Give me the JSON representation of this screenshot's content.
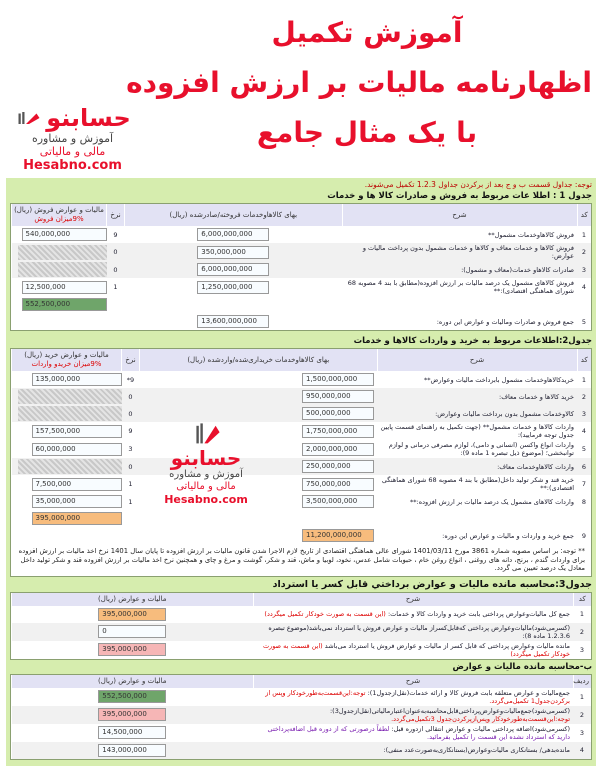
{
  "header": {
    "title_lines": [
      "آموزش تکمیل",
      "اظهارنامه مالیات بر ارزش افزوده",
      "با یک مثال جامع"
    ]
  },
  "logo": {
    "mark": "حسابنو",
    "line1": "آموزش و مشاوره",
    "line2": "مالی و مالیاتی",
    "site": "Hesabno.com"
  },
  "note_top": "توجه: جداول قسمت ب و ج بعد از برکردن جداول 1.2.3 تکمیل می‌شوند.",
  "table1": {
    "title": "جدول 1 : اطلا عات مربوط به فروش و صادرات کالا ها و خدمات",
    "headers": [
      "کد",
      "شرح",
      "بهای کالاهاوخدمات فروخته/صادرشده (ریال)",
      "نرخ",
      "مالیات و عوارض فروش (ریال)"
    ],
    "header_note": "9%میزان فروش",
    "rows": [
      {
        "code": "1",
        "desc": "فروش کالاهاوخدمات مشمول**",
        "amount": "6,000,000,000",
        "rate": "9",
        "tax": "540,000,000",
        "tax_style": "input"
      },
      {
        "code": "2",
        "desc": "فروش کالاها و خدمات معاف و کالاها و خدمات مشمول بدون پرداخت مالیات و عوارض:",
        "amount": "350,000,000",
        "rate": "0",
        "tax": "",
        "tax_style": "hatch"
      },
      {
        "code": "3",
        "desc": "صادرات کالاهاو خدمات(معاف و مشمول):",
        "amount": "6,000,000,000",
        "rate": "0",
        "tax": "",
        "tax_style": "hatch"
      },
      {
        "code": "4",
        "desc": "فروش کالاهای مشمول یک درصد مالیات بر ارزش افزوده(مطابق با بند 4 مصوبه 68 شورای هماهنگی اقتصادی):**",
        "amount": "1,250,000,000",
        "rate": "1",
        "tax": "12,500,000",
        "tax_style": "input"
      },
      {
        "code": "",
        "desc": "",
        "amount": "",
        "rate": "",
        "tax": "552,500,000",
        "tax_style": "green"
      },
      {
        "code": "5",
        "desc": "جمع فروش و صادرات ومالیات و عوارض این دوره:",
        "amount": "13,600,000,000",
        "rate": "",
        "tax": "",
        "tax_style": "none"
      }
    ]
  },
  "table2": {
    "title": "جدول2:اطلاعات مربوط به خرید و واردات کالاها و خدمات",
    "headers": [
      "کد",
      "شرح",
      "بهای کالاهاوخدمات خریداری‌شده/وارد‌شده (ریال)",
      "نرخ",
      "مالیات و عوارض خرید (ریال)"
    ],
    "header_note": "9%میزان خریدو واردات",
    "rows": [
      {
        "code": "1",
        "desc": "خریدکالاهاوخدمات مشمول بابرداخت مالیات وعوارض**",
        "amount": "1,500,000,000",
        "rate": "9*",
        "tax": "135,000,000",
        "tax_style": "input"
      },
      {
        "code": "2",
        "desc": "خرید کالاها و خدمات معاف:",
        "amount": "950,000,000",
        "rate": "0",
        "tax": "",
        "tax_style": "hatch"
      },
      {
        "code": "3",
        "desc": "کالاوخدمات مشمول بدون برداخت مالیات وعوارض:",
        "amount": "500,000,000",
        "rate": "0",
        "tax": "",
        "tax_style": "hatch"
      },
      {
        "code": "4",
        "desc": "واردات کالاها و خدمات مشمول** (جهت تکمیل به راهنمای قسمت پایین جدول توجه فرمایید):",
        "amount": "1,750,000,000",
        "rate": "9",
        "tax": "157,500,000",
        "tax_style": "input"
      },
      {
        "code": "5",
        "desc": "واردات انواع واکسن (انسانی و دامی)، لوازم مصرفی درمانی و لوازم توانبخشی؛ (موضوع ذیل تبصره 1 ماده 9):",
        "amount": "2,000,000,000",
        "rate": "3",
        "tax": "60,000,000",
        "tax_style": "input"
      },
      {
        "code": "6",
        "desc": "واردات کالاهاوخدمات معاف:",
        "amount": "250,000,000",
        "rate": "0",
        "tax": "",
        "tax_style": "hatch"
      },
      {
        "code": "7",
        "desc": "خرید قند و شکر تولید داخل(مطابق با بند 4 مصوبه 68 شورای هماهنگی اقتصادی):**",
        "amount": "750,000,000",
        "rate": "1",
        "tax": "7,500,000",
        "tax_style": "input"
      },
      {
        "code": "8",
        "desc": "واردات کالاهای مشمول یک درصد مالیات بر ارزش افزوده:**",
        "amount": "3,500,000,000",
        "rate": "1",
        "tax": "35,000,000",
        "tax_style": "input"
      },
      {
        "code": "",
        "desc": "",
        "amount": "",
        "rate": "",
        "tax": "395,000,000",
        "tax_style": "orange"
      },
      {
        "code": "9",
        "desc": "جمع خرید و واردات و مالیات و عوارض این دوره:",
        "amount": "11,200,000,000",
        "rate": "",
        "tax": "",
        "tax_style": "none",
        "amount_style": "orange"
      }
    ],
    "footnote": "** توجه: بر اساس مصوبه شماره 3861 مورخ 1401/03/11 شورای عالی هماهنگی اقتصادی از تاریخ لازم الاجرا شدن قانون مالیات بر ارزش افزوده تا پایان سال 1401 نرخ اخذ مالیات بر ارزش افزوده برای واردات گندم ، برنج، دانه های روغنی ، انواع روغن خام ، حبوبات شامل عدس، نخود، لوبیا و ماش، قند و شکر، گوشت و مرغ و چای و همچنین نرخ اخذ مالیات بر ارزش افزوده قند و شکر تولید داخل معادل یک درصد تعیین می گردد."
  },
  "table3": {
    "title": "جدول3:محاسبه مانده مالیات و عوارض برداختي قابل کسر یا استرداد",
    "headers": [
      "کد",
      "شرح",
      "مالیات و عوارض (ریال)"
    ],
    "rows": [
      {
        "code": "1",
        "desc": "جمع کل مالیات‌وعوارض پرداختی بابت خرید و واردات کالا و خدمات:",
        "note": "(این قسمت به صورت خودکار تکمیل میگردد)",
        "value": "395,000,000",
        "style": "orange"
      },
      {
        "code": "2",
        "desc": "(کسرمی‌شود)مالیات‌وعوارض پرداختی که‌قابل‌کسراز مالیات و عوارض فروش یا استرداد نمی‌باشد(موضوع تبصره 1.2.3.6 ماده 8):",
        "note": "",
        "value": "0",
        "style": "input"
      },
      {
        "code": "3",
        "desc": "مانده مالیات وعوارض پرداختی که قابل کسر از مالیات و عوارض فروش یا استرداد می‌باشد",
        "note": "(این قسمت به صورت خودکار تکمیل میگردد)",
        "value": "395,000,000",
        "style": "pink"
      }
    ]
  },
  "table4": {
    "title": "ب-محاسبه مانده مالیات و عوارض",
    "headers": [
      "ردیف",
      "شرح",
      "مالیات و عوارض (ریال)"
    ],
    "rows": [
      {
        "code": "1",
        "desc": "جمع‌مالیات و عوارض متعلقه بابت فروش کالا و ارائه خدمات(نقل‌ازجدول1):",
        "note": "توجه:این‌قسمت‌به‌طورخودکار وپس از برکردن‌جدول1 تکمیل‌می‌گردد.",
        "value": "552,500,000",
        "style": "green"
      },
      {
        "code": "2",
        "desc": "(کسرمی‌شود)جمع‌مالیات‌وعوارض‌پرداختی‌قابل‌محاسبه‌به‌عنوان‌اعتبارمالیاتی(نقل‌ازجدول3):",
        "note": "توجه:این‌قسمت‌به‌طورخودکار وپس‌ازپرکردن‌جدول 3تکمیل‌می‌گردد.",
        "value": "395,000,000",
        "style": "pink"
      },
      {
        "code": "3",
        "desc": "(کسرمی‌شود)اضافه پرداختی مالیات و عوارض انتقالی ازدوره قبل:",
        "note": "لطفاً درصورتی که از دوره قبل اضافه‌پرداختی دارید که استرداد نشده این قسمت را تکمیل بفرمائید.",
        "value": "14,500,000",
        "style": "input",
        "note_color": "purple"
      },
      {
        "code": "4",
        "desc": "مانده‌بدهی/ بستانکاری مالیات‌وعوارض(بستانکاری‌به‌صورت‌عدد منفی):",
        "note": "",
        "value": "143,000,000",
        "style": "input"
      }
    ]
  }
}
